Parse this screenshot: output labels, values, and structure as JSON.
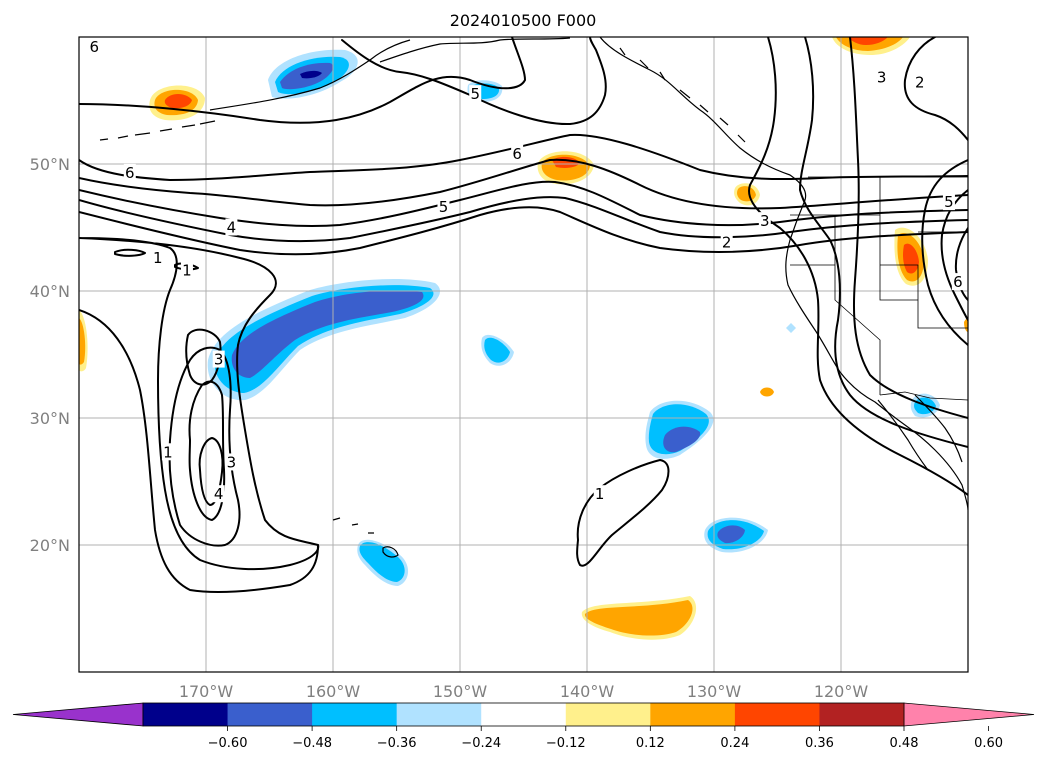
{
  "title": "2024010500 F000",
  "map": {
    "projection": "PlateCarree",
    "lon_range": [
      -180,
      -110
    ],
    "lat_range": [
      10,
      60
    ],
    "longitude_labels": [
      {
        "lon": -170,
        "label": "170°W"
      },
      {
        "lon": -160,
        "label": "160°W"
      },
      {
        "lon": -150,
        "label": "150°W"
      },
      {
        "lon": -140,
        "label": "140°W"
      },
      {
        "lon": -130,
        "label": "130°W"
      },
      {
        "lon": -120,
        "label": "120°W"
      }
    ],
    "latitude_labels": [
      {
        "lat": 50,
        "label": "50°N"
      },
      {
        "lat": 40,
        "label": "40°N"
      },
      {
        "lat": 30,
        "label": "30°N"
      },
      {
        "lat": 20,
        "label": "20°N"
      }
    ],
    "gridlines": true
  },
  "colorbar": {
    "extend": "both",
    "orientation": "horizontal",
    "colors": [
      "#9932cc",
      "#00008b",
      "#3a5fcd",
      "#00bfff",
      "#b0e2ff",
      "#ffffff",
      "#fff08c",
      "#ffa500",
      "#ff4500",
      "#b22222",
      "#ff82ab"
    ],
    "ticks": [
      {
        "value": -0.6,
        "label": "−0.60"
      },
      {
        "value": -0.48,
        "label": "−0.48"
      },
      {
        "value": -0.36,
        "label": "−0.36"
      },
      {
        "value": -0.24,
        "label": "−0.24"
      },
      {
        "value": -0.12,
        "label": "−0.12"
      },
      {
        "value": 0.12,
        "label": "0.12"
      },
      {
        "value": 0.24,
        "label": "0.24"
      },
      {
        "value": 0.36,
        "label": "0.36"
      },
      {
        "value": 0.48,
        "label": "0.48"
      },
      {
        "value": 0.6,
        "label": "0.60"
      }
    ]
  },
  "contour_labels": [
    {
      "text": "6",
      "lon": -178.8,
      "lat": 59.2
    },
    {
      "text": "5",
      "lon": -148.8,
      "lat": 55.5
    },
    {
      "text": "6",
      "lon": -176.0,
      "lat": 49.3
    },
    {
      "text": "6",
      "lon": -145.5,
      "lat": 50.8
    },
    {
      "text": "5",
      "lon": -151.3,
      "lat": 46.6
    },
    {
      "text": "4",
      "lon": -168.0,
      "lat": 45.0
    },
    {
      "text": "3",
      "lon": -126.0,
      "lat": 45.5
    },
    {
      "text": "2",
      "lon": -129.0,
      "lat": 43.8
    },
    {
      "text": "1",
      "lon": -173.8,
      "lat": 42.6
    },
    {
      "text": "1",
      "lon": -171.5,
      "lat": 41.6
    },
    {
      "text": "3",
      "lon": -116.8,
      "lat": 56.8
    },
    {
      "text": "2",
      "lon": -113.8,
      "lat": 56.4
    },
    {
      "text": "5",
      "lon": -111.5,
      "lat": 47.0
    },
    {
      "text": "6",
      "lon": -110.8,
      "lat": 40.7
    },
    {
      "text": "3",
      "lon": -169.0,
      "lat": 34.6
    },
    {
      "text": "1",
      "lon": -173.0,
      "lat": 27.3
    },
    {
      "text": "3",
      "lon": -168.0,
      "lat": 26.5
    },
    {
      "text": "4",
      "lon": -169.0,
      "lat": 24.0
    },
    {
      "text": "1",
      "lon": -139.0,
      "lat": 24.0
    }
  ]
}
